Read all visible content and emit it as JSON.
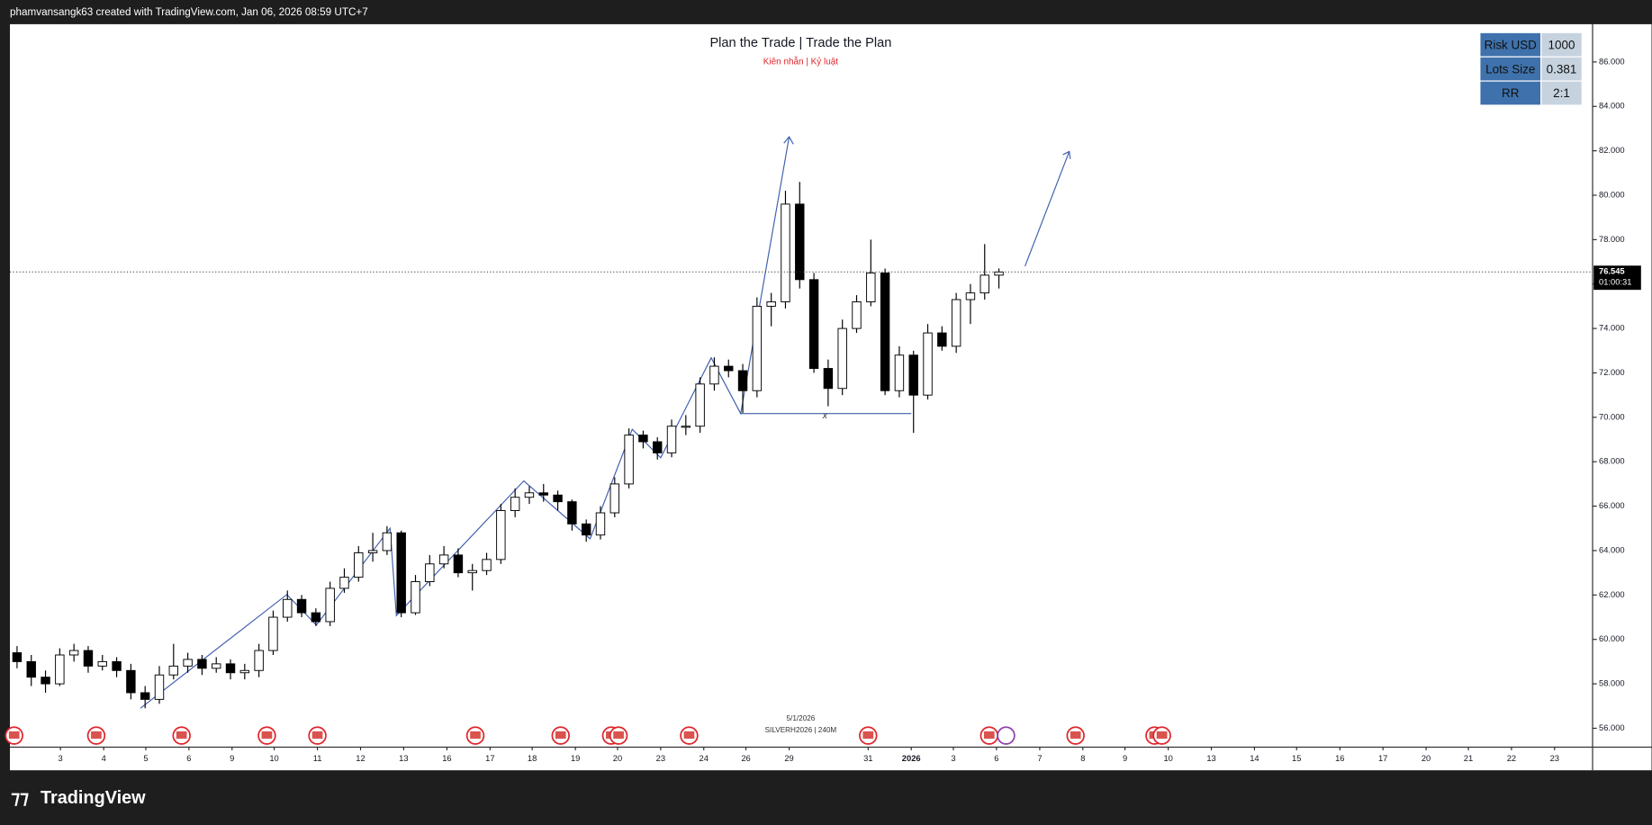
{
  "header": "phamvansangk63 created with TradingView.com, Jan 06, 2026 08:59 UTC+7",
  "brand": "TradingView",
  "table": {
    "rows": [
      [
        "Risk USD",
        "1000"
      ],
      [
        "Lots Size",
        "0.381"
      ],
      [
        "RR",
        "2:1"
      ]
    ]
  },
  "chart_data": {
    "type": "candlestick",
    "title": "Plan the Trade | Trade the Plan",
    "subtitle": "Kiên nhẫn | Kỷ luật",
    "watermark_date": "5/1/2026",
    "watermark_symbol": "SILVERH2026 | 240M",
    "annotation": "x",
    "countdown": "01:00:31",
    "up_color": "#ffffff",
    "down_color": "#000000",
    "wick_color": "#000000",
    "x": [
      0,
      1,
      2,
      3,
      4,
      5,
      6,
      7,
      8,
      9,
      10,
      11,
      12,
      13,
      14,
      15,
      16,
      17,
      18,
      19,
      20,
      21,
      22,
      23,
      24,
      25,
      26,
      27,
      28,
      29,
      30,
      31,
      32,
      33,
      34,
      35,
      36,
      37,
      38,
      39,
      40,
      41,
      42,
      43,
      44,
      45,
      46,
      47,
      48,
      49,
      50,
      51,
      52,
      53,
      54,
      55,
      56,
      57,
      58,
      59,
      60,
      61,
      62,
      63,
      64,
      65,
      66,
      67,
      68,
      69
    ],
    "open": [
      59.4,
      59.0,
      58.3,
      58.0,
      59.3,
      59.5,
      58.8,
      59.0,
      58.6,
      57.6,
      57.3,
      58.4,
      58.8,
      59.1,
      58.7,
      58.9,
      58.5,
      58.6,
      59.5,
      61.0,
      61.8,
      61.2,
      60.8,
      62.3,
      62.8,
      63.9,
      64.0,
      64.8,
      61.2,
      62.6,
      63.4,
      63.8,
      63.0,
      63.1,
      63.6,
      65.8,
      66.4,
      66.6,
      66.5,
      66.2,
      65.2,
      64.7,
      65.7,
      67.0,
      69.2,
      68.9,
      68.4,
      69.6,
      69.6,
      71.5,
      72.3,
      72.1,
      71.2,
      75.0,
      75.2,
      79.6,
      76.2,
      72.2,
      71.3,
      74.0,
      75.2,
      76.5,
      71.2,
      72.8,
      71.0,
      73.8,
      73.2,
      75.3,
      75.6,
      76.4
    ],
    "high": [
      59.7,
      59.3,
      58.6,
      59.6,
      59.8,
      59.7,
      59.3,
      59.2,
      58.9,
      57.9,
      58.8,
      59.8,
      59.4,
      59.3,
      59.2,
      59.1,
      58.9,
      59.8,
      61.3,
      62.2,
      62.0,
      61.4,
      62.6,
      63.2,
      64.2,
      64.8,
      65.1,
      64.9,
      62.9,
      63.8,
      64.2,
      64.1,
      63.4,
      63.9,
      66.1,
      66.8,
      66.9,
      67.0,
      66.7,
      66.3,
      65.4,
      66.0,
      67.3,
      69.5,
      69.4,
      69.1,
      69.9,
      70.1,
      71.8,
      72.7,
      72.6,
      72.4,
      75.4,
      75.6,
      80.2,
      80.6,
      76.5,
      72.6,
      74.4,
      75.5,
      78.0,
      76.7,
      73.2,
      73.0,
      74.2,
      74.1,
      75.6,
      76.0,
      77.8,
      76.7
    ],
    "low": [
      58.7,
      57.9,
      57.6,
      57.9,
      59.0,
      58.5,
      58.6,
      58.3,
      57.3,
      56.9,
      57.1,
      58.2,
      58.5,
      58.4,
      58.5,
      58.2,
      58.2,
      58.3,
      59.3,
      60.8,
      61.0,
      60.6,
      60.6,
      62.1,
      62.6,
      63.5,
      63.8,
      61.0,
      61.1,
      62.4,
      63.2,
      62.8,
      62.2,
      62.9,
      63.4,
      65.5,
      66.1,
      66.2,
      65.8,
      64.9,
      64.4,
      64.5,
      65.5,
      66.8,
      68.6,
      68.1,
      68.2,
      69.2,
      69.3,
      71.2,
      71.8,
      70.2,
      70.9,
      74.1,
      74.9,
      75.8,
      72.0,
      70.5,
      71.0,
      73.8,
      75.0,
      71.0,
      70.9,
      69.3,
      70.8,
      73.0,
      72.9,
      74.2,
      75.3,
      75.8
    ],
    "close": [
      59.0,
      58.3,
      58.0,
      59.3,
      59.5,
      58.8,
      59.0,
      58.6,
      57.6,
      57.3,
      58.4,
      58.8,
      59.1,
      58.7,
      58.9,
      58.5,
      58.6,
      59.5,
      61.0,
      61.8,
      61.2,
      60.8,
      62.3,
      62.8,
      63.9,
      64.0,
      64.8,
      61.2,
      62.6,
      63.4,
      63.8,
      63.0,
      63.1,
      63.6,
      65.8,
      66.4,
      66.6,
      66.5,
      66.2,
      65.2,
      64.7,
      65.7,
      67.0,
      69.2,
      68.9,
      68.4,
      69.6,
      69.6,
      71.5,
      72.3,
      72.1,
      71.2,
      75.0,
      75.2,
      79.6,
      76.2,
      72.2,
      71.3,
      74.0,
      75.2,
      76.5,
      71.2,
      72.8,
      71.0,
      73.8,
      73.2,
      75.3,
      75.6,
      76.4,
      76.545
    ],
    "xlim": [
      -0.5,
      110.72
    ],
    "ylim": [
      55.15,
      87.7
    ],
    "xticks": [
      {
        "value": 3.05,
        "label": "3"
      },
      {
        "value": 6.09,
        "label": "4"
      },
      {
        "value": 9.05,
        "label": "5"
      },
      {
        "value": 12.08,
        "label": "6"
      },
      {
        "value": 15.11,
        "label": "9"
      },
      {
        "value": 18.07,
        "label": "10"
      },
      {
        "value": 21.11,
        "label": "11"
      },
      {
        "value": 24.14,
        "label": "12"
      },
      {
        "value": 27.17,
        "label": "13"
      },
      {
        "value": 30.21,
        "label": "16"
      },
      {
        "value": 33.24,
        "label": "17"
      },
      {
        "value": 36.2,
        "label": "18"
      },
      {
        "value": 39.24,
        "label": "19"
      },
      {
        "value": 42.2,
        "label": "20"
      },
      {
        "value": 45.23,
        "label": "23"
      },
      {
        "value": 48.26,
        "label": "24"
      },
      {
        "value": 51.22,
        "label": "26"
      },
      {
        "value": 54.26,
        "label": "29"
      },
      {
        "value": 59.81,
        "label": "31"
      },
      {
        "value": 62.84,
        "label": "2026"
      },
      {
        "value": 65.8,
        "label": "3"
      },
      {
        "value": 68.83,
        "label": "6"
      },
      {
        "value": 71.87,
        "label": "7"
      },
      {
        "value": 74.9,
        "label": "8"
      },
      {
        "value": 77.86,
        "label": "9"
      },
      {
        "value": 80.9,
        "label": "10"
      },
      {
        "value": 83.93,
        "label": "13"
      },
      {
        "value": 86.96,
        "label": "14"
      },
      {
        "value": 89.92,
        "label": "15"
      },
      {
        "value": 92.96,
        "label": "16"
      },
      {
        "value": 95.99,
        "label": "17"
      },
      {
        "value": 99.02,
        "label": "20"
      },
      {
        "value": 101.99,
        "label": "21"
      },
      {
        "value": 105.02,
        "label": "22"
      },
      {
        "value": 108.05,
        "label": "23"
      }
    ],
    "yticks": [
      {
        "value": 56,
        "label": "56.000"
      },
      {
        "value": 58,
        "label": "58.000"
      },
      {
        "value": 60,
        "label": "60.000"
      },
      {
        "value": 62,
        "label": "62.000"
      },
      {
        "value": 64,
        "label": "64.000"
      },
      {
        "value": 66,
        "label": "66.000"
      },
      {
        "value": 68,
        "label": "68.000"
      },
      {
        "value": 70,
        "label": "70.000"
      },
      {
        "value": 72,
        "label": "72.000"
      },
      {
        "value": 74,
        "label": "74.000"
      },
      {
        "value": 76,
        "label": "76.000"
      },
      {
        "value": 78,
        "label": "78.000"
      },
      {
        "value": 80,
        "label": "80.000"
      },
      {
        "value": 82,
        "label": "82.000"
      },
      {
        "value": 84,
        "label": "84.000"
      },
      {
        "value": 86,
        "label": "86.000"
      }
    ],
    "grid": false
  }
}
